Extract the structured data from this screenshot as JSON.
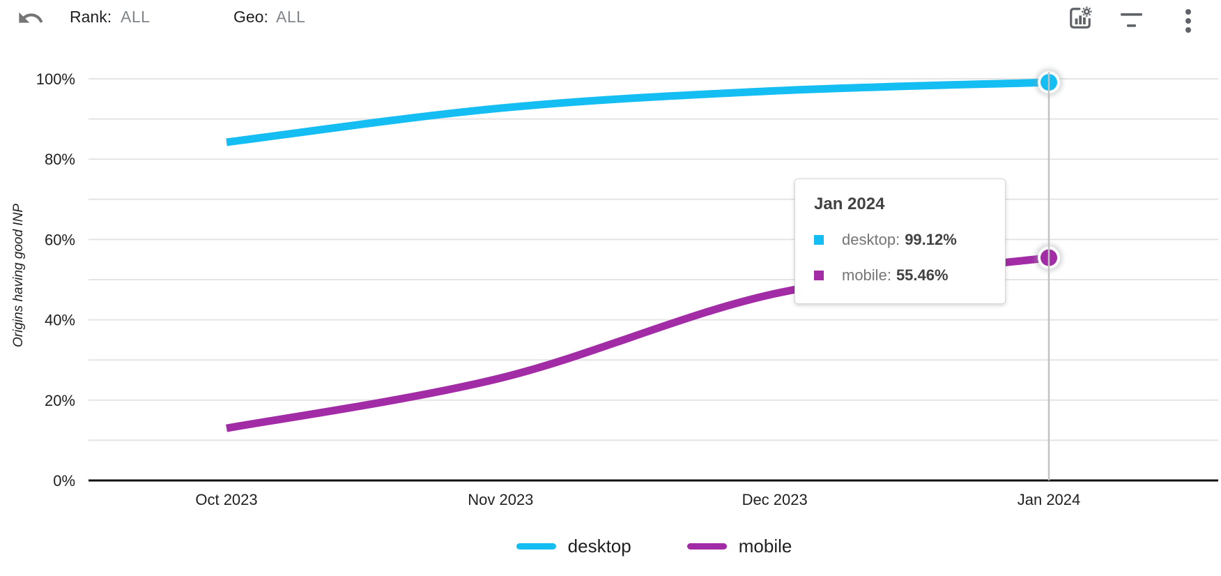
{
  "header": {
    "rank_label": "Rank:",
    "rank_value": "ALL",
    "geo_label": "Geo:",
    "geo_value": "ALL",
    "icons": {
      "undo": "undo-icon",
      "chart_settings": "chart-settings-icon",
      "filter": "filter-icon",
      "more": "kebab-menu-icon"
    }
  },
  "chart_data": {
    "type": "line",
    "title": "",
    "xlabel": "",
    "ylabel": "Origins having good INP",
    "x": [
      "Oct 2023",
      "Nov 2023",
      "Dec 2023",
      "Jan 2024"
    ],
    "series": [
      {
        "name": "desktop",
        "color": "#14bdf2",
        "values": [
          84.2,
          92.7,
          97.0,
          99.12
        ]
      },
      {
        "name": "mobile",
        "color": "#a12ca5",
        "values": [
          13.0,
          25.5,
          46.5,
          55.46
        ]
      }
    ],
    "ylim": [
      0,
      100
    ],
    "ytick_label_step": 20,
    "ytick_grid_step": 10,
    "ytick_suffix": "%",
    "grid": true,
    "legend_position": "bottom",
    "selected_index": 3,
    "colors": {
      "gridline": "#e4e4e4",
      "axis": "#111111",
      "crosshair": "#c2c2c2"
    }
  },
  "tooltip": {
    "title": "Jan 2024",
    "rows": [
      {
        "label": "desktop",
        "value": "99.12%",
        "color": "#14bdf2"
      },
      {
        "label": "mobile",
        "value": "55.46%",
        "color": "#a12ca5"
      }
    ]
  }
}
